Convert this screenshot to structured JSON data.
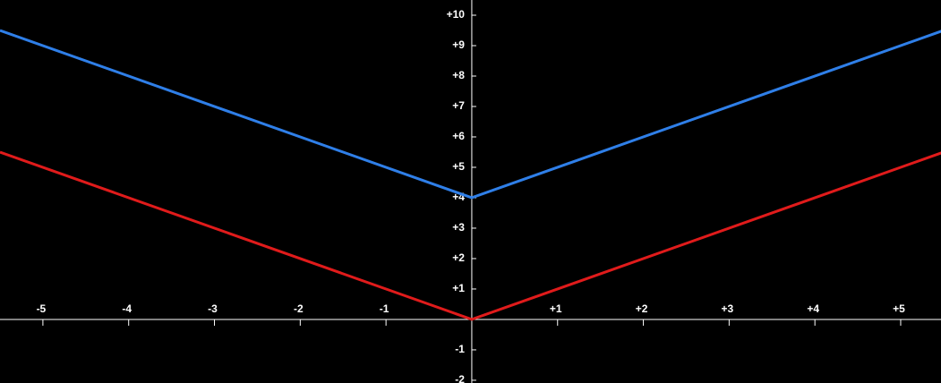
{
  "chart_data": {
    "type": "line",
    "x": [
      -5.5,
      0,
      5.5
    ],
    "series": [
      {
        "color": "#e01b1b",
        "values": [
          5.5,
          0,
          5.5
        ]
      },
      {
        "color": "#2f7fe8",
        "values": [
          9.5,
          4,
          9.5
        ]
      }
    ],
    "xlim": [
      -5.5,
      5.47
    ],
    "ylim": [
      -2.09,
      10.5
    ],
    "xticks": [
      -5,
      -4,
      -3,
      -2,
      -1,
      {
        "value": 1,
        "label": "+1"
      },
      {
        "value": 2,
        "label": "+2"
      },
      {
        "value": 3,
        "label": "+3"
      },
      {
        "value": 4,
        "label": "+4"
      },
      {
        "value": 5,
        "label": "+5"
      }
    ],
    "yticks": [
      -2,
      -1,
      {
        "value": 1,
        "label": "+1"
      },
      {
        "value": 2,
        "label": "+2"
      },
      {
        "value": 3,
        "label": "+3"
      },
      {
        "value": 4,
        "label": "+4"
      },
      {
        "value": 5,
        "label": "+5"
      },
      {
        "value": 6,
        "label": "+6"
      },
      {
        "value": 7,
        "label": "+7"
      },
      {
        "value": 8,
        "label": "+8"
      },
      {
        "value": 9,
        "label": "+9"
      },
      {
        "value": 10,
        "label": "+10"
      }
    ]
  }
}
